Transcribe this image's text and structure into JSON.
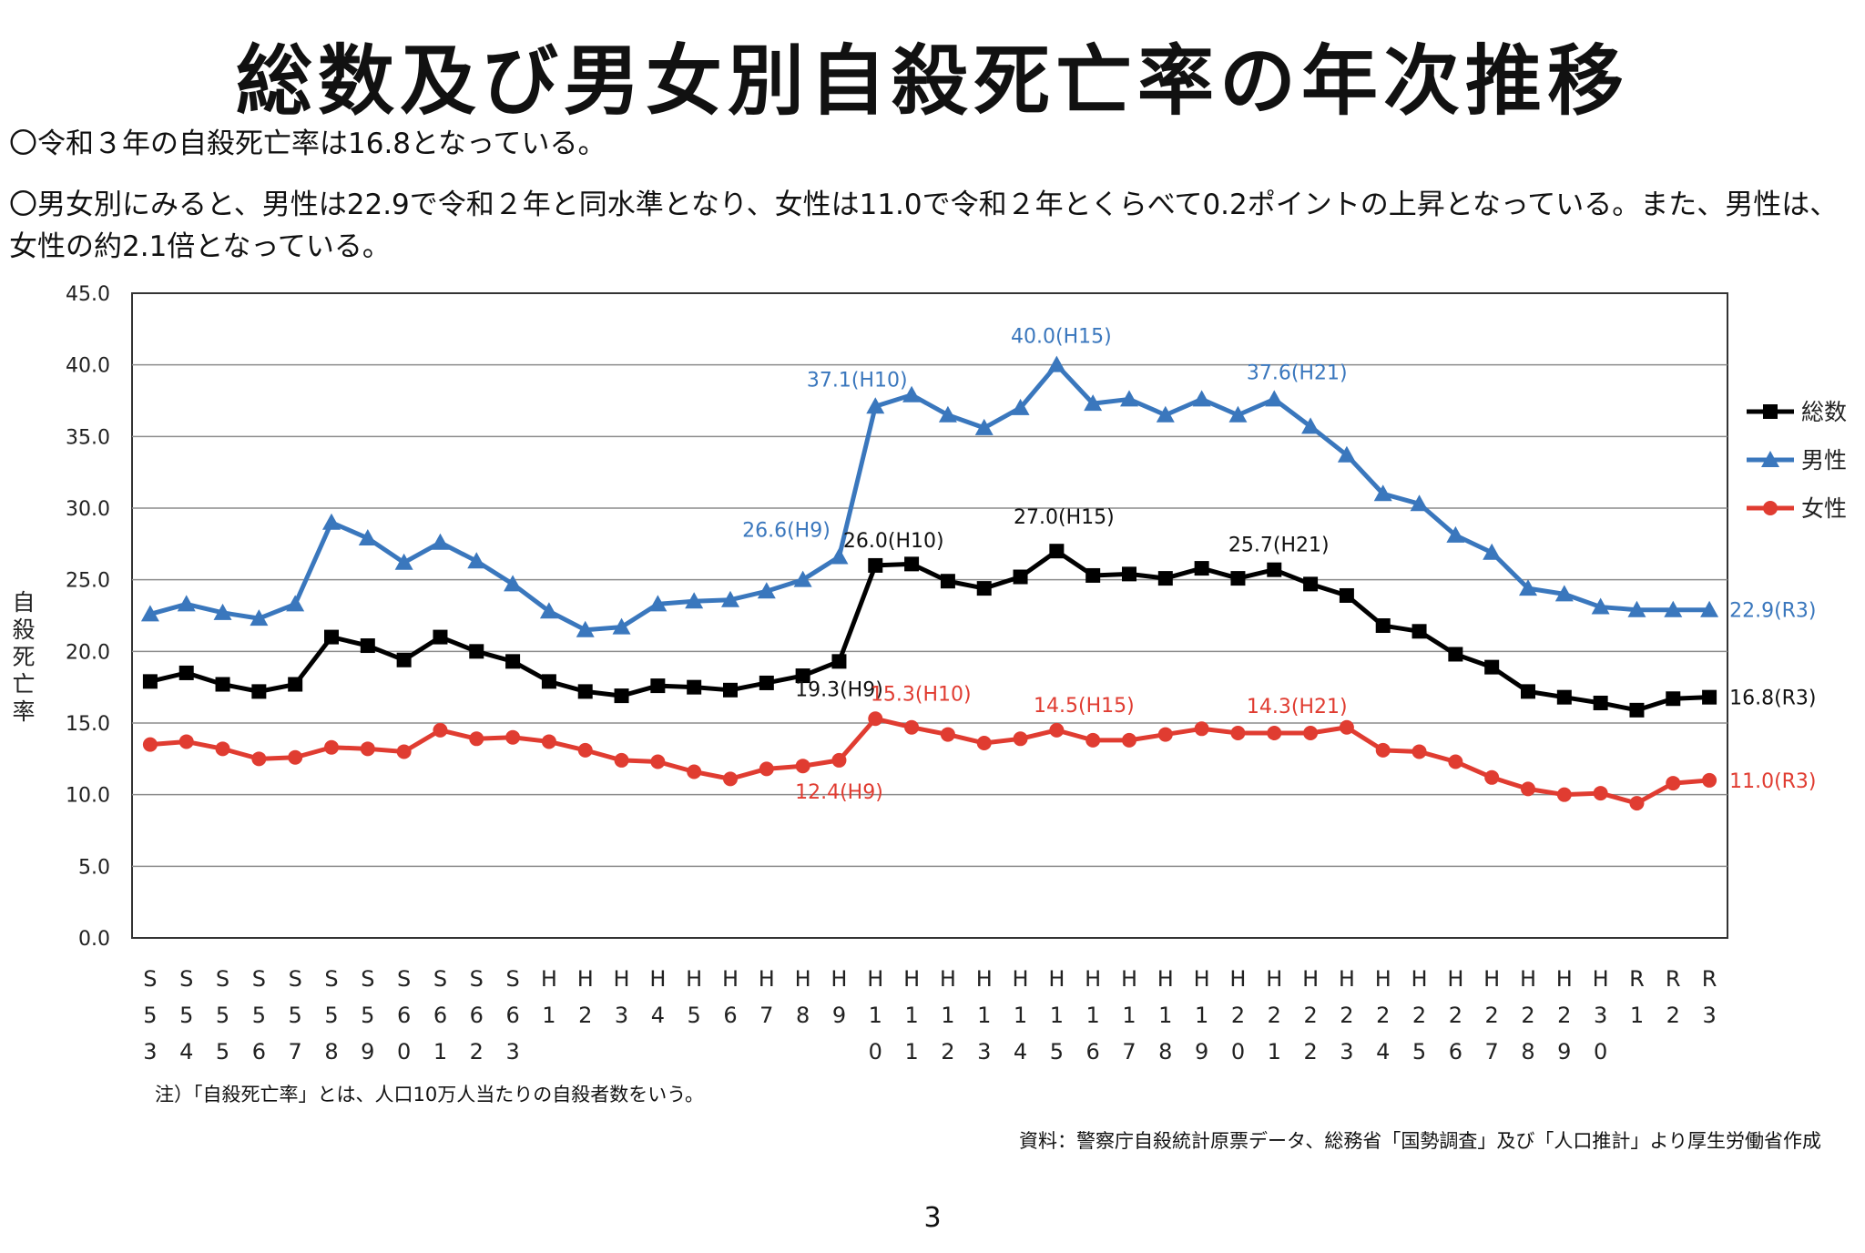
{
  "title": "総数及び男女別自殺死亡率の年次推移",
  "bullets": [
    "〇令和３年の自殺死亡率は16.8となっている。",
    "〇男女別にみると、男性は22.9で令和２年と同水準となり、女性は11.0で令和２年とくらべて0.2ポイントの上昇となっている。また、男性は、女性の約2.1倍となっている。"
  ],
  "note": "注）「自殺死亡率」とは、人口10万人当たりの自殺者数をいう。",
  "source": "資料：警察庁自殺統計原票データ、総務省「国勢調査」及び「人口推計」より厚生労働省作成",
  "page_number": "3",
  "chart_data": {
    "type": "line",
    "ylabel": "自殺死亡率",
    "ylim": [
      0,
      45
    ],
    "yticks": [
      "0.0",
      "5.0",
      "10.0",
      "15.0",
      "20.0",
      "25.0",
      "30.0",
      "35.0",
      "40.0",
      "45.0"
    ],
    "grid": true,
    "legend_position": "right",
    "categories": [
      "S53",
      "S54",
      "S55",
      "S56",
      "S57",
      "S58",
      "S59",
      "S60",
      "S61",
      "S62",
      "S63",
      "H1",
      "H2",
      "H3",
      "H4",
      "H5",
      "H6",
      "H7",
      "H8",
      "H9",
      "H10",
      "H11",
      "H12",
      "H13",
      "H14",
      "H15",
      "H16",
      "H17",
      "H18",
      "H19",
      "H20",
      "H21",
      "H22",
      "H23",
      "H24",
      "H25",
      "H26",
      "H27",
      "H28",
      "H29",
      "H30",
      "R1",
      "R2",
      "R3"
    ],
    "series": [
      {
        "name": "総数",
        "color": "#000000",
        "marker": "square",
        "values": [
          17.9,
          18.5,
          17.7,
          17.2,
          17.7,
          21.0,
          20.4,
          19.4,
          21.0,
          20.0,
          19.3,
          17.9,
          17.2,
          16.9,
          17.6,
          17.5,
          17.3,
          17.8,
          18.3,
          19.3,
          26.0,
          26.1,
          24.9,
          24.4,
          25.2,
          27.0,
          25.3,
          25.4,
          25.1,
          25.8,
          25.1,
          25.7,
          24.7,
          23.9,
          21.8,
          21.4,
          19.8,
          18.9,
          17.2,
          16.8,
          16.4,
          15.9,
          16.7,
          16.8
        ],
        "annotations": [
          {
            "category": "H9",
            "label": "19.3(H9)"
          },
          {
            "category": "H10",
            "label": "26.0(H10)"
          },
          {
            "category": "H15",
            "label": "27.0(H15)"
          },
          {
            "category": "H21",
            "label": "25.7(H21)"
          },
          {
            "category": "R3",
            "label": "16.8(R3)"
          }
        ]
      },
      {
        "name": "男性",
        "color": "#3a77bd",
        "marker": "triangle",
        "values": [
          22.6,
          23.3,
          22.7,
          22.3,
          23.3,
          29.0,
          27.9,
          26.2,
          27.6,
          26.3,
          24.7,
          22.8,
          21.5,
          21.7,
          23.3,
          23.5,
          23.6,
          24.2,
          25.0,
          26.6,
          37.1,
          37.9,
          36.5,
          35.6,
          37.0,
          40.0,
          37.3,
          37.6,
          36.5,
          37.6,
          36.5,
          37.6,
          35.7,
          33.7,
          31.0,
          30.3,
          28.1,
          26.9,
          24.4,
          24.0,
          23.1,
          22.9,
          22.9,
          22.9
        ],
        "annotations": [
          {
            "category": "H9",
            "label": "26.6(H9)"
          },
          {
            "category": "H10",
            "label": "37.1(H10)"
          },
          {
            "category": "H15",
            "label": "40.0(H15)"
          },
          {
            "category": "H21",
            "label": "37.6(H21)"
          },
          {
            "category": "R3",
            "label": "22.9(R3)"
          }
        ]
      },
      {
        "name": "女性",
        "color": "#e03c31",
        "marker": "circle",
        "values": [
          13.5,
          13.7,
          13.2,
          12.5,
          12.6,
          13.3,
          13.2,
          13.0,
          14.5,
          13.9,
          14.0,
          13.7,
          13.1,
          12.4,
          12.3,
          11.6,
          11.1,
          11.8,
          12.0,
          12.4,
          15.3,
          14.7,
          14.2,
          13.6,
          13.9,
          14.5,
          13.8,
          13.8,
          14.2,
          14.6,
          14.3,
          14.3,
          14.3,
          14.7,
          13.1,
          13.0,
          12.3,
          11.2,
          10.4,
          10.0,
          10.1,
          9.4,
          10.8,
          11.0
        ],
        "annotations": [
          {
            "category": "H9",
            "label": "12.4(H9)"
          },
          {
            "category": "H10",
            "label": "15.3(H10)"
          },
          {
            "category": "H15",
            "label": "14.5(H15)"
          },
          {
            "category": "H21",
            "label": "14.3(H21)"
          },
          {
            "category": "R3",
            "label": "11.0(R3)"
          }
        ]
      }
    ]
  }
}
